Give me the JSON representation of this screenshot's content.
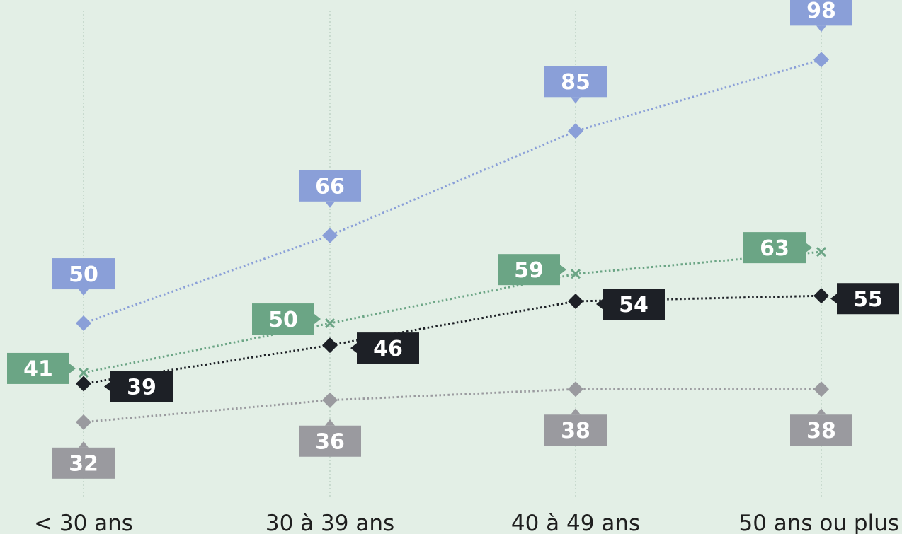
{
  "chart_data": {
    "type": "line",
    "categories": [
      "< 30 ans",
      "30 à 39 ans",
      "40 à 49 ans",
      "50 ans ou plus"
    ],
    "ylim": [
      20,
      105
    ],
    "grid": "vertical",
    "legend": "none",
    "series": [
      {
        "values": [
          50,
          66,
          85,
          98
        ],
        "color": "#8a9fd8",
        "marker": "diamond",
        "label_position": "above"
      },
      {
        "values": [
          41,
          50,
          59,
          63
        ],
        "color": "#6ba585",
        "marker": "cross",
        "label_position": "left"
      },
      {
        "values": [
          39,
          46,
          54,
          55
        ],
        "color": "#1d2026",
        "marker": "diamond",
        "label_position": "right"
      },
      {
        "values": [
          32,
          36,
          38,
          38
        ],
        "color": "#9a9a9f",
        "marker": "diamond",
        "label_position": "below"
      }
    ]
  }
}
